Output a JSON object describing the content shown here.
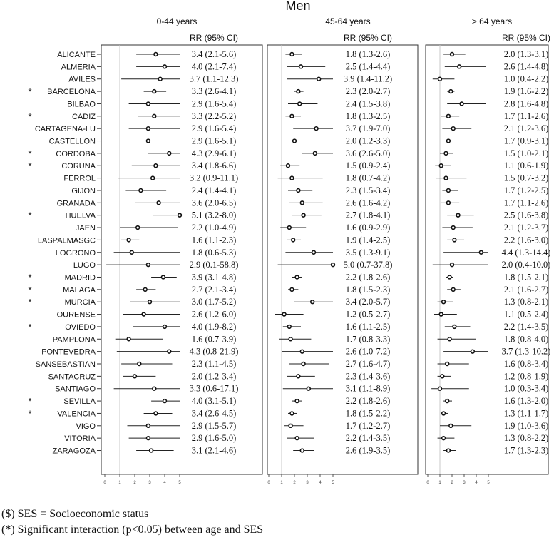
{
  "chart_data": {
    "type": "forest",
    "title": "Men",
    "panels": [
      {
        "label": "0-44 years",
        "ci_header": "RR (95% CI)",
        "xlim": [
          0,
          5
        ],
        "ticks": [
          0,
          1,
          2,
          3,
          4,
          5
        ],
        "ref_line": 1
      },
      {
        "label": "45-64 years",
        "ci_header": "RR (95% CI)",
        "xlim": [
          0,
          5
        ],
        "ticks": [
          0,
          1,
          2,
          3,
          4,
          5
        ],
        "ref_line": 1
      },
      {
        "label": "> 64 years",
        "ci_header": "RR (95% CI)",
        "xlim": [
          0,
          5
        ],
        "ticks": [
          0,
          1,
          2,
          3,
          4,
          5
        ],
        "ref_line": 1
      }
    ],
    "rows": [
      {
        "city": "ALICANTE",
        "sig": false,
        "values": [
          [
            3.4,
            2.1,
            5.6
          ],
          [
            1.8,
            1.3,
            2.6
          ],
          [
            2.0,
            1.3,
            3.1
          ]
        ],
        "labels": [
          "3.4 (2.1-5.6)",
          "1.8 (1.3-2.6)",
          "2.0 (1.3-3.1)"
        ]
      },
      {
        "city": "ALMERIA",
        "sig": false,
        "values": [
          [
            4.0,
            2.1,
            7.4
          ],
          [
            2.5,
            1.4,
            4.4
          ],
          [
            2.6,
            1.4,
            4.8
          ]
        ],
        "labels": [
          "4.0 (2.1-7.4)",
          "2.5 (1.4-4.4)",
          "2.6 (1.4-4.8)"
        ]
      },
      {
        "city": "AVILES",
        "sig": false,
        "values": [
          [
            3.7,
            1.1,
            12.3
          ],
          [
            3.9,
            1.4,
            11.2
          ],
          [
            1.0,
            0.4,
            2.2
          ]
        ],
        "labels": [
          "3.7 (1.1-12.3)",
          "3.9 (1.4-11.2)",
          "1.0 (0.4-2.2)"
        ]
      },
      {
        "city": "BARCELONA",
        "sig": true,
        "values": [
          [
            3.3,
            2.6,
            4.1
          ],
          [
            2.3,
            2.0,
            2.7
          ],
          [
            1.9,
            1.6,
            2.2
          ]
        ],
        "labels": [
          "3.3 (2.6-4.1)",
          "2.3 (2.0-2.7)",
          "1.9 (1.6-2.2)"
        ]
      },
      {
        "city": "BILBAO",
        "sig": false,
        "values": [
          [
            2.9,
            1.6,
            5.4
          ],
          [
            2.4,
            1.5,
            3.8
          ],
          [
            2.8,
            1.6,
            4.8
          ]
        ],
        "labels": [
          "2.9 (1.6-5.4)",
          "2.4 (1.5-3.8)",
          "2.8 (1.6-4.8)"
        ]
      },
      {
        "city": "CADIZ",
        "sig": true,
        "values": [
          [
            3.3,
            2.2,
            5.2
          ],
          [
            1.8,
            1.3,
            2.5
          ],
          [
            1.7,
            1.1,
            2.6
          ]
        ],
        "labels": [
          "3.3 (2.2-5.2)",
          "1.8 (1.3-2.5)",
          "1.7 (1.1-2.6)"
        ]
      },
      {
        "city": "CARTAGENA-LU",
        "sig": false,
        "values": [
          [
            2.9,
            1.6,
            5.4
          ],
          [
            3.7,
            1.9,
            7.0
          ],
          [
            2.1,
            1.2,
            3.6
          ]
        ],
        "labels": [
          "2.9 (1.6-5.4)",
          "3.7 (1.9-7.0)",
          "2.1 (1.2-3.6)"
        ]
      },
      {
        "city": "CASTELLON",
        "sig": false,
        "values": [
          [
            2.9,
            1.6,
            5.1
          ],
          [
            2.0,
            1.2,
            3.3
          ],
          [
            1.7,
            0.9,
            3.1
          ]
        ],
        "labels": [
          "2.9 (1.6-5.1)",
          "2.0 (1.2-3.3)",
          "1.7 (0.9-3.1)"
        ]
      },
      {
        "city": "CORDOBA",
        "sig": true,
        "values": [
          [
            4.3,
            2.9,
            6.1
          ],
          [
            3.6,
            2.6,
            5.0
          ],
          [
            1.5,
            1.0,
            2.1
          ]
        ],
        "labels": [
          "4.3 (2.9-6.1)",
          "3.6 (2.6-5.0)",
          "1.5 (1.0-2.1)"
        ]
      },
      {
        "city": "CORUNA",
        "sig": true,
        "values": [
          [
            3.4,
            1.8,
            6.6
          ],
          [
            1.5,
            0.9,
            2.4
          ],
          [
            1.1,
            0.6,
            1.9
          ]
        ],
        "labels": [
          "3.4 (1.8-6.6)",
          "1.5 (0.9-2.4)",
          "1.1 (0.6-1.9)"
        ]
      },
      {
        "city": "FERROL",
        "sig": false,
        "values": [
          [
            3.2,
            0.9,
            11.1
          ],
          [
            1.8,
            0.7,
            4.2
          ],
          [
            1.5,
            0.7,
            3.2
          ]
        ],
        "labels": [
          "3.2 (0.9-11.1)",
          "1.8 (0.7-4.2)",
          "1.5 (0.7-3.2)"
        ]
      },
      {
        "city": "GIJON",
        "sig": false,
        "values": [
          [
            2.4,
            1.4,
            4.1
          ],
          [
            2.3,
            1.5,
            3.4
          ],
          [
            1.7,
            1.2,
            2.5
          ]
        ],
        "labels": [
          "2.4 (1.4-4.1)",
          "2.3 (1.5-3.4)",
          "1.7 (1.2-2.5)"
        ]
      },
      {
        "city": "GRANADA",
        "sig": false,
        "values": [
          [
            3.6,
            2.0,
            6.5
          ],
          [
            2.6,
            1.6,
            4.2
          ],
          [
            1.7,
            1.1,
            2.6
          ]
        ],
        "labels": [
          "3.6 (2.0-6.5)",
          "2.6 (1.6-4.2)",
          "1.7 (1.1-2.6)"
        ]
      },
      {
        "city": "HUELVA",
        "sig": true,
        "values": [
          [
            5.1,
            3.2,
            8.0
          ],
          [
            2.7,
            1.8,
            4.1
          ],
          [
            2.5,
            1.6,
            3.8
          ]
        ],
        "labels": [
          "5.1 (3.2-8.0)",
          "2.7 (1.8-4.1)",
          "2.5 (1.6-3.8)"
        ]
      },
      {
        "city": "JAEN",
        "sig": false,
        "values": [
          [
            2.2,
            1.0,
            4.9
          ],
          [
            1.6,
            0.9,
            2.9
          ],
          [
            2.1,
            1.2,
            3.7
          ]
        ],
        "labels": [
          "2.2 (1.0-4.9)",
          "1.6 (0.9-2.9)",
          "2.1 (1.2-3.7)"
        ]
      },
      {
        "city": "LASPALMASGC",
        "sig": false,
        "values": [
          [
            1.6,
            1.1,
            2.3
          ],
          [
            1.9,
            1.4,
            2.5
          ],
          [
            2.2,
            1.6,
            3.0
          ]
        ],
        "labels": [
          "1.6 (1.1-2.3)",
          "1.9 (1.4-2.5)",
          "2.2 (1.6-3.0)"
        ]
      },
      {
        "city": "LOGRONO",
        "sig": false,
        "values": [
          [
            1.8,
            0.6,
            5.3
          ],
          [
            3.5,
            1.3,
            9.1
          ],
          [
            4.4,
            1.3,
            14.4
          ]
        ],
        "labels": [
          "1.8 (0.6-5.3)",
          "3.5 (1.3-9.1)",
          "4.4 (1.3-14.4)"
        ]
      },
      {
        "city": "LUGO",
        "sig": false,
        "values": [
          [
            2.9,
            0.1,
            58.8
          ],
          [
            5.0,
            0.7,
            37.8
          ],
          [
            2.0,
            0.4,
            10.0
          ]
        ],
        "labels": [
          "2.9 (0.1-58.8)",
          "5.0 (0.7-37.8)",
          "2.0 (0.4-10.0)"
        ]
      },
      {
        "city": "MADRID",
        "sig": true,
        "values": [
          [
            3.9,
            3.1,
            4.8
          ],
          [
            2.2,
            1.8,
            2.6
          ],
          [
            1.8,
            1.5,
            2.1
          ]
        ],
        "labels": [
          "3.9 (3.1-4.8)",
          "2.2 (1.8-2.6)",
          "1.8 (1.5-2.1)"
        ]
      },
      {
        "city": "MALAGA",
        "sig": true,
        "values": [
          [
            2.7,
            2.1,
            3.4
          ],
          [
            1.8,
            1.5,
            2.3
          ],
          [
            2.1,
            1.6,
            2.7
          ]
        ],
        "labels": [
          "2.7 (2.1-3.4)",
          "1.8 (1.5-2.3)",
          "2.1 (1.6-2.7)"
        ]
      },
      {
        "city": "MURCIA",
        "sig": true,
        "values": [
          [
            3.0,
            1.7,
            5.2
          ],
          [
            3.4,
            2.0,
            5.7
          ],
          [
            1.3,
            0.8,
            2.1
          ]
        ],
        "labels": [
          "3.0 (1.7-5.2)",
          "3.4 (2.0-5.7)",
          "1.3 (0.8-2.1)"
        ]
      },
      {
        "city": "OURENSE",
        "sig": false,
        "values": [
          [
            2.6,
            1.2,
            6.0
          ],
          [
            1.2,
            0.5,
            2.7
          ],
          [
            1.1,
            0.5,
            2.4
          ]
        ],
        "labels": [
          "2.6 (1.2-6.0)",
          "1.2 (0.5-2.7)",
          "1.1 (0.5-2.4)"
        ]
      },
      {
        "city": "OVIEDO",
        "sig": true,
        "values": [
          [
            4.0,
            1.9,
            8.2
          ],
          [
            1.6,
            1.1,
            2.5
          ],
          [
            2.2,
            1.4,
            3.5
          ]
        ],
        "labels": [
          "4.0 (1.9-8.2)",
          "1.6 (1.1-2.5)",
          "2.2 (1.4-3.5)"
        ]
      },
      {
        "city": "PAMPLONA",
        "sig": false,
        "values": [
          [
            1.6,
            0.7,
            3.9
          ],
          [
            1.7,
            0.8,
            3.3
          ],
          [
            1.8,
            0.8,
            4.0
          ]
        ],
        "labels": [
          "1.6 (0.7-3.9)",
          "1.7 (0.8-3.3)",
          "1.8 (0.8-4.0)"
        ]
      },
      {
        "city": "PONTEVEDRA",
        "sig": false,
        "values": [
          [
            4.3,
            0.8,
            21.9
          ],
          [
            2.6,
            1.0,
            7.2
          ],
          [
            3.7,
            1.3,
            10.2
          ]
        ],
        "labels": [
          "4.3 (0.8-21.9)",
          "2.6 (1.0-7.2)",
          "3.7 (1.3-10.2)"
        ]
      },
      {
        "city": "SANSEBASTIAN",
        "sig": false,
        "values": [
          [
            2.3,
            1.1,
            4.5
          ],
          [
            2.7,
            1.6,
            4.7
          ],
          [
            1.6,
            0.8,
            3.4
          ]
        ],
        "labels": [
          "2.3 (1.1-4.5)",
          "2.7 (1.6-4.7)",
          "1.6 (0.8-3.4)"
        ]
      },
      {
        "city": "SANTACRUZ",
        "sig": false,
        "values": [
          [
            2.0,
            1.2,
            3.4
          ],
          [
            2.3,
            1.4,
            3.6
          ],
          [
            1.2,
            0.8,
            1.9
          ]
        ],
        "labels": [
          "2.0 (1.2-3.4)",
          "2.3 (1.4-3.6)",
          "1.2 (0.8-1.9)"
        ]
      },
      {
        "city": "SANTIAGO",
        "sig": false,
        "values": [
          [
            3.3,
            0.6,
            17.1
          ],
          [
            3.1,
            1.1,
            8.9
          ],
          [
            1.0,
            0.3,
            3.4
          ]
        ],
        "labels": [
          "3.3 (0.6-17.1)",
          "3.1 (1.1-8.9)",
          "1.0 (0.3-3.4)"
        ]
      },
      {
        "city": "SEVILLA",
        "sig": true,
        "values": [
          [
            4.0,
            3.1,
            5.1
          ],
          [
            2.2,
            1.8,
            2.6
          ],
          [
            1.6,
            1.3,
            2.0
          ]
        ],
        "labels": [
          "4.0 (3.1-5.1)",
          "2.2 (1.8-2.6)",
          "1.6 (1.3-2.0)"
        ]
      },
      {
        "city": "VALENCIA",
        "sig": true,
        "values": [
          [
            3.4,
            2.6,
            4.5
          ],
          [
            1.8,
            1.5,
            2.2
          ],
          [
            1.3,
            1.1,
            1.7
          ]
        ],
        "labels": [
          "3.4 (2.6-4.5)",
          "1.8 (1.5-2.2)",
          "1.3 (1.1-1.7)"
        ]
      },
      {
        "city": "VIGO",
        "sig": false,
        "values": [
          [
            2.9,
            1.5,
            5.7
          ],
          [
            1.7,
            1.2,
            2.7
          ],
          [
            1.9,
            1.0,
            3.6
          ]
        ],
        "labels": [
          "2.9 (1.5-5.7)",
          "1.7 (1.2-2.7)",
          "1.9 (1.0-3.6)"
        ]
      },
      {
        "city": "VITORIA",
        "sig": false,
        "values": [
          [
            2.9,
            1.6,
            5.0
          ],
          [
            2.2,
            1.4,
            3.5
          ],
          [
            1.3,
            0.8,
            2.2
          ]
        ],
        "labels": [
          "2.9 (1.6-5.0)",
          "2.2 (1.4-3.5)",
          "1.3 (0.8-2.2)"
        ]
      },
      {
        "city": "ZARAGOZA",
        "sig": false,
        "values": [
          [
            3.1,
            2.1,
            4.6
          ],
          [
            2.6,
            1.9,
            3.5
          ],
          [
            1.7,
            1.3,
            2.3
          ]
        ],
        "labels": [
          "3.1 (2.1-4.6)",
          "2.6 (1.9-3.5)",
          "1.7 (1.3-2.3)"
        ]
      }
    ],
    "sig_marker": "*",
    "footnotes": [
      "($) SES = Socioeconomic status",
      "(*) Significant interaction (p<0.05) between age and SES"
    ]
  }
}
